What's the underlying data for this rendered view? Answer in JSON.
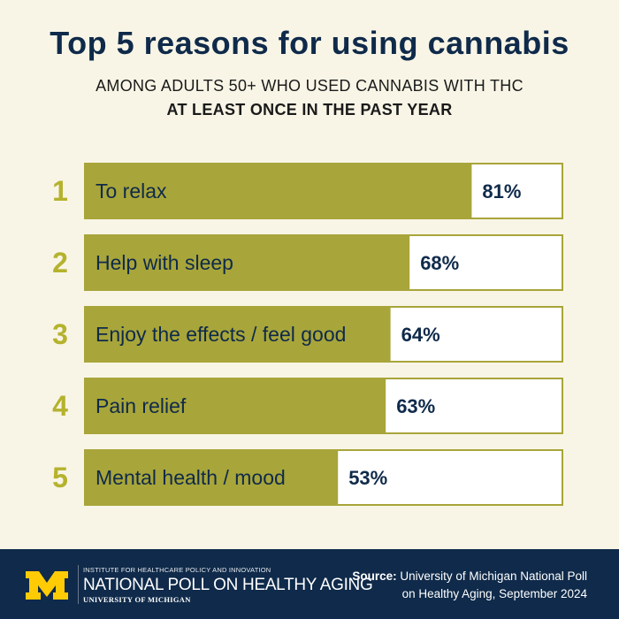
{
  "header": {
    "title": "Top 5 reasons for using cannabis",
    "subtitle_line1": "AMONG ADULTS 50+ WHO USED CANNABIS WITH THC",
    "subtitle_line2": "AT LEAST ONCE IN THE PAST YEAR"
  },
  "colors": {
    "navy": "#0f2a4a",
    "olive": "#a8a53a",
    "accent_yellow": "#b5b22e",
    "bar_background": "#ffffff",
    "bar_border": "#a8a53a",
    "logo_maize": "#ffcb05"
  },
  "chart_data": {
    "type": "bar",
    "orientation": "horizontal",
    "title": "Top 5 reasons for using cannabis",
    "subtitle": "AMONG ADULTS 50+ WHO USED CANNABIS WITH THC AT LEAST ONCE IN THE PAST YEAR",
    "ranks": [
      "1",
      "2",
      "3",
      "4",
      "5"
    ],
    "categories": [
      "To relax",
      "Help with sleep",
      "Enjoy the effects / feel good",
      "Pain relief",
      "Mental health / mood"
    ],
    "values": [
      81,
      68,
      64,
      63,
      53
    ],
    "value_labels": [
      "81%",
      "68%",
      "64%",
      "63%",
      "53%"
    ],
    "xlim": [
      0,
      100
    ],
    "unit": "%"
  },
  "footer": {
    "logo_letter": "M",
    "org_line1": "INSTITUTE FOR HEALTHCARE POLICY AND INNOVATION",
    "org_line2": "NATIONAL POLL ON HEALTHY AGING",
    "org_line3": "UNIVERSITY OF MICHIGAN",
    "source_label": "Source:",
    "source_text": " University of Michigan National Poll on Healthy Aging, September 2024"
  }
}
